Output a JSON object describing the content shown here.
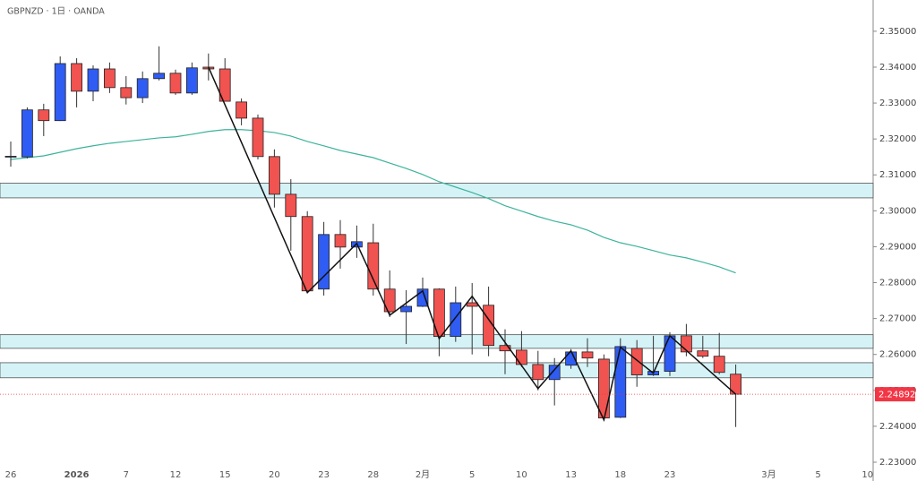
{
  "chart_data": {
    "type": "candlestick",
    "title": "GBPNZD · 1日 · OANDA",
    "categories": [
      "26",
      null,
      null,
      null,
      "2026",
      null,
      null,
      "7",
      null,
      null,
      "12",
      null,
      null,
      "15",
      null,
      null,
      "20",
      null,
      null,
      "23",
      null,
      null,
      "28",
      null,
      null,
      "2月",
      null,
      null,
      "5",
      null,
      null,
      "10",
      null,
      null,
      "13",
      null,
      null,
      "18",
      null,
      null,
      "23",
      null,
      null,
      null,
      null,
      null,
      "3月",
      null,
      null,
      "5",
      null,
      null,
      "10"
    ],
    "ohlc": {
      "open": [
        2.315,
        2.315,
        2.3281,
        2.3251,
        2.341,
        2.3333,
        2.3395,
        2.3343,
        2.3315,
        2.3368,
        2.3383,
        2.3328,
        2.34,
        2.3395,
        2.3303,
        2.3258,
        2.3151,
        2.3046,
        2.2984,
        2.2782,
        2.2934,
        2.2899,
        2.2911,
        2.2782,
        2.2719,
        2.2734,
        2.2782,
        2.265,
        2.2744,
        2.2737,
        2.2625,
        2.2612,
        2.2572,
        2.253,
        2.257,
        2.2607,
        2.2587,
        2.2425,
        2.2617,
        2.2543,
        2.2553,
        2.2652,
        2.261,
        2.2595,
        2.2545,
        null,
        null,
        null,
        null,
        null,
        null,
        null
      ],
      "high": [
        2.3193,
        2.3288,
        2.3298,
        2.343,
        2.3425,
        2.3405,
        2.3413,
        2.3375,
        2.3388,
        2.3458,
        2.3393,
        2.3413,
        2.3438,
        2.3425,
        2.3313,
        2.3268,
        2.3171,
        2.3088,
        2.2999,
        2.2969,
        2.2974,
        2.2959,
        2.2964,
        2.2834,
        2.2779,
        2.2814,
        2.2784,
        2.2789,
        2.2799,
        2.2789,
        2.267,
        2.2665,
        2.261,
        2.259,
        2.2615,
        2.2645,
        2.26,
        2.2645,
        2.264,
        2.2652,
        2.2662,
        2.2685,
        2.2652,
        2.266,
        2.2572,
        null,
        null,
        null,
        null,
        null,
        null,
        null
      ],
      "low": [
        2.3123,
        2.3146,
        2.3208,
        2.325,
        2.3288,
        2.3305,
        2.3328,
        2.3296,
        2.33,
        2.3363,
        2.3323,
        2.3323,
        2.3363,
        2.3305,
        2.3238,
        2.3143,
        2.3009,
        2.2889,
        2.2772,
        2.2764,
        2.2839,
        2.2869,
        2.2764,
        2.2704,
        2.2629,
        2.2732,
        2.2595,
        2.2635,
        2.26,
        2.2595,
        2.2545,
        2.2565,
        2.25,
        2.2458,
        2.256,
        2.2565,
        2.2415,
        2.2423,
        2.251,
        2.254,
        2.254,
        2.2595,
        2.259,
        2.2545,
        2.2398,
        null,
        null,
        null,
        null,
        null,
        null,
        null
      ],
      "close": [
        2.3152,
        2.3281,
        2.3251,
        2.341,
        2.3333,
        2.3395,
        2.3343,
        2.3315,
        2.3368,
        2.3383,
        2.3328,
        2.3398,
        2.3395,
        2.3305,
        2.3258,
        2.3151,
        2.3046,
        2.2984,
        2.2777,
        2.2934,
        2.2899,
        2.2914,
        2.2782,
        2.2719,
        2.2734,
        2.2782,
        2.265,
        2.2744,
        2.2734,
        2.2625,
        2.261,
        2.2572,
        2.253,
        2.257,
        2.2607,
        2.259,
        2.2423,
        2.2622,
        2.2543,
        2.2553,
        2.2652,
        2.2607,
        2.2595,
        2.255,
        2.24892,
        null,
        null,
        null,
        null,
        null,
        null,
        null
      ]
    },
    "up_color": "#2f5cf2",
    "down_color": "#f05350",
    "ma": {
      "color": "#3db39c",
      "values": [
        2.3143,
        2.3148,
        2.3153,
        2.3163,
        2.3173,
        2.3181,
        2.3188,
        2.3193,
        2.3198,
        2.3203,
        2.3206,
        2.3213,
        2.3221,
        2.3226,
        2.3226,
        2.3223,
        2.3218,
        2.3208,
        2.3193,
        2.3181,
        2.3168,
        2.3158,
        2.3148,
        2.3133,
        2.3118,
        2.3101,
        2.3081,
        2.3066,
        2.3051,
        2.3034,
        2.3014,
        2.2999,
        2.2984,
        2.2971,
        2.2961,
        2.2946,
        2.2926,
        2.2911,
        2.2901,
        2.2889,
        2.2877,
        2.2869,
        2.2857,
        2.2844,
        2.2827,
        null,
        null,
        null,
        null,
        null,
        null,
        null
      ]
    },
    "zigzag": {
      "color": "#111111",
      "x": [
        12,
        18,
        21,
        23,
        25,
        26,
        28,
        32,
        34,
        36,
        37,
        39,
        40,
        44
      ],
      "values": [
        2.34,
        2.2772,
        2.2909,
        2.2709,
        2.2777,
        2.2644,
        2.2762,
        2.2505,
        2.261,
        2.2418,
        2.262,
        2.2548,
        2.2652,
        2.2489
      ]
    },
    "zones": {
      "color": "#d5f3f7",
      "ranges": [
        [
          2.3036,
          2.3077
        ],
        [
          2.2617,
          2.2655
        ],
        [
          2.2535,
          2.2577
        ]
      ]
    },
    "last_price": 2.24892,
    "last_price_color": "#f23645",
    "ylim": [
      2.2285,
      2.3587
    ],
    "yticks": [
      {
        "value": 2.35,
        "label": "2.35000"
      },
      {
        "value": 2.34,
        "label": "2.34000"
      },
      {
        "value": 2.33,
        "label": "2.33000"
      },
      {
        "value": 2.32,
        "label": "2.32000"
      },
      {
        "value": 2.31,
        "label": "2.31000"
      },
      {
        "value": 2.3,
        "label": "2.30000"
      },
      {
        "value": 2.29,
        "label": "2.29000"
      },
      {
        "value": 2.28,
        "label": "2.28000"
      },
      {
        "value": 2.27,
        "label": "2.27000"
      },
      {
        "value": 2.26,
        "label": "2.26000"
      },
      {
        "value": 2.25,
        "label": "2.25000"
      },
      {
        "value": 2.24,
        "label": "2.24000"
      },
      {
        "value": 2.23,
        "label": "2.23000"
      }
    ],
    "grid": false
  }
}
